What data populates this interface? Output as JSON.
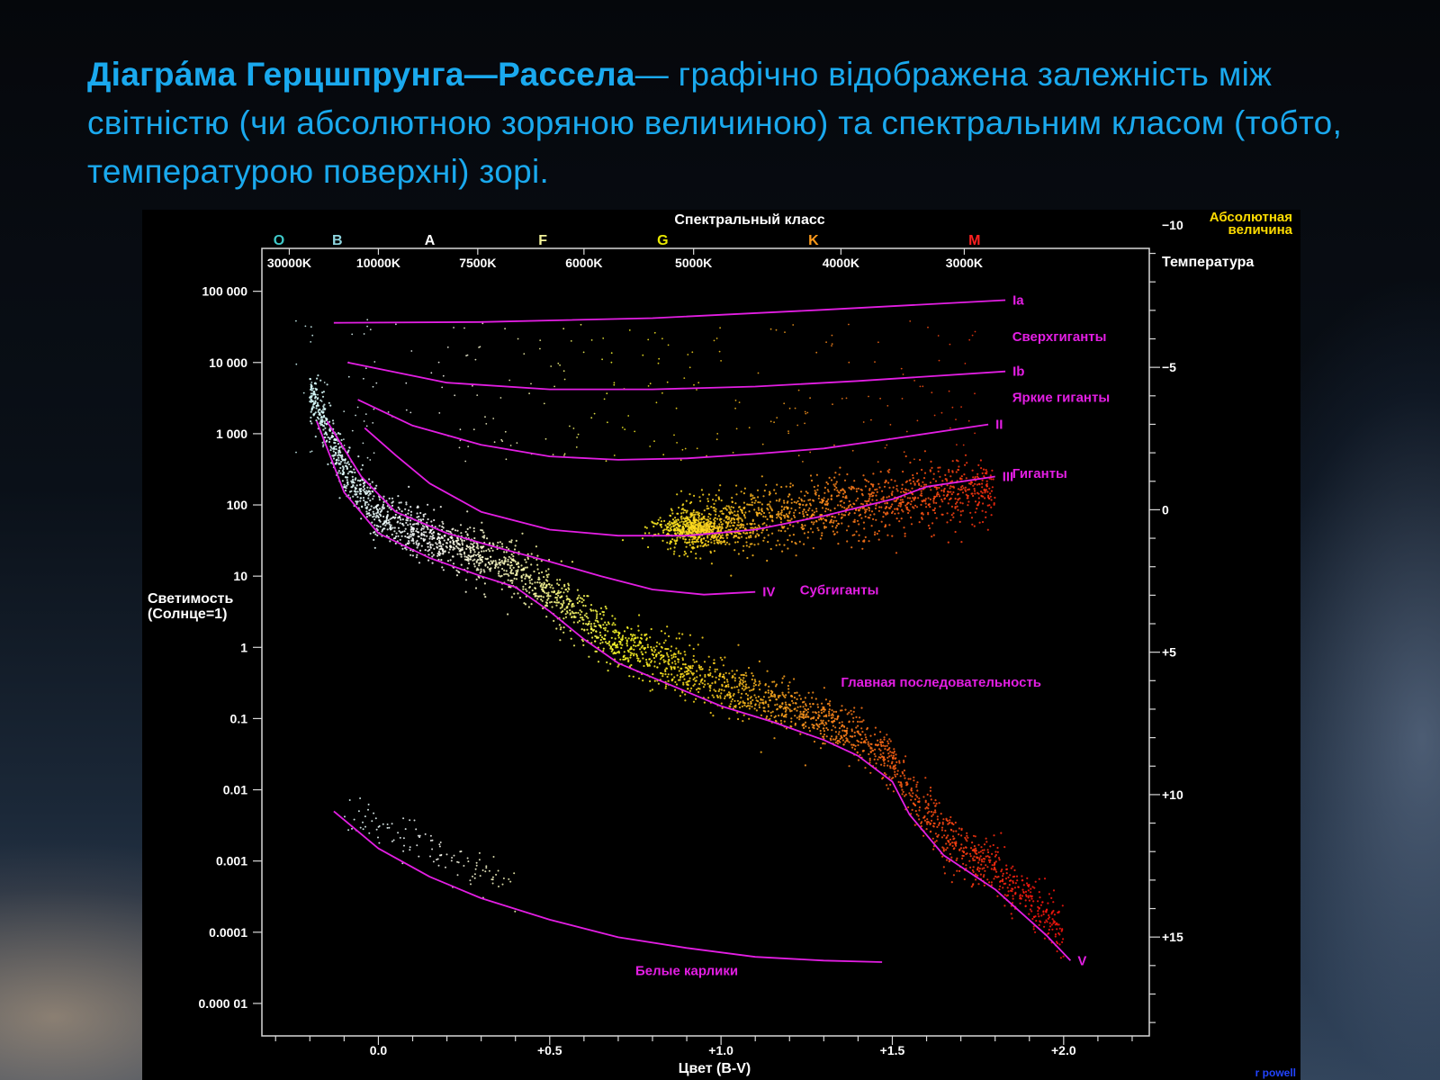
{
  "slide": {
    "title_bold": "Діагра́ма Герцшпрунга—Рассела",
    "title_rest": "— графічно відображена залежність між світністю (чи абсолютною зоряною величиною) та спектральним класом (тобто, температурою поверхні) зорі."
  },
  "chart_data": {
    "type": "scatter",
    "title": "Спектральный класс",
    "xlabel": "Цвет (B-V)",
    "ylabel": "Светимость (Солнце=1)",
    "y2label": "Абсолютная величина",
    "temperature_label": "Температура",
    "credit": "r powell",
    "x_scale": "linear",
    "y_scale": "log",
    "xlim": [
      -0.34,
      2.25
    ],
    "ylim": [
      3.5e-06,
      400000
    ],
    "x_ticks": [
      0.0,
      0.5,
      1.0,
      1.5,
      2.0
    ],
    "x_tick_labels": [
      "0.0",
      "+0.5",
      "+1.0",
      "+1.5",
      "+2.0"
    ],
    "y_ticks": [
      100000,
      10000,
      1000,
      100,
      10,
      1,
      0.1,
      0.01,
      0.001,
      0.0001,
      1e-05
    ],
    "y_tick_labels": [
      "100 000",
      "10 000",
      "1 000",
      "100",
      "10",
      "1",
      "0.1",
      "0.01",
      "0.001",
      "0.0001",
      "0.000 01"
    ],
    "abs_mag_ticks": [
      -10,
      -5,
      0,
      5,
      10,
      15
    ],
    "abs_mag_tick_labels": [
      "−10",
      "−5",
      "0",
      "+5",
      "+10",
      "+15"
    ],
    "spectral_classes": [
      {
        "label": "O",
        "x": -0.29,
        "color": "#3fc9c9"
      },
      {
        "label": "B",
        "x": -0.12,
        "color": "#8fd6e0"
      },
      {
        "label": "A",
        "x": 0.15,
        "color": "#ffffff"
      },
      {
        "label": "F",
        "x": 0.48,
        "color": "#f3f39a"
      },
      {
        "label": "G",
        "x": 0.83,
        "color": "#e8e800"
      },
      {
        "label": "K",
        "x": 1.27,
        "color": "#ff9a1a"
      },
      {
        "label": "M",
        "x": 1.74,
        "color": "#ff2020"
      }
    ],
    "temperatures": [
      {
        "label": "30000K",
        "x": -0.26
      },
      {
        "label": "10000K",
        "x": 0.0
      },
      {
        "label": "7500K",
        "x": 0.29
      },
      {
        "label": "6000K",
        "x": 0.6
      },
      {
        "label": "5000K",
        "x": 0.92
      },
      {
        "label": "4000K",
        "x": 1.35
      },
      {
        "label": "3000K",
        "x": 1.71
      }
    ],
    "grid": false,
    "series": [
      {
        "name": "Ia",
        "label": "Ia",
        "color": "#e31ee3",
        "x": [
          -0.13,
          0.3,
          0.8,
          1.3,
          1.83
        ],
        "y": [
          36000,
          37000,
          42000,
          55000,
          75000
        ]
      },
      {
        "name": "Ib",
        "label": "Ib",
        "color": "#e31ee3",
        "x": [
          -0.09,
          0.2,
          0.5,
          0.8,
          1.1,
          1.4,
          1.83
        ],
        "y": [
          10000,
          5200,
          4200,
          4200,
          4600,
          5500,
          7500
        ]
      },
      {
        "name": "II",
        "label": "II",
        "color": "#e31ee3",
        "x": [
          -0.06,
          0.1,
          0.3,
          0.5,
          0.7,
          0.9,
          1.1,
          1.3,
          1.5,
          1.78
        ],
        "y": [
          3000,
          1300,
          700,
          480,
          430,
          450,
          520,
          620,
          850,
          1350
        ]
      },
      {
        "name": "III",
        "label": "III",
        "color": "#e31ee3",
        "x": [
          -0.04,
          0.05,
          0.15,
          0.3,
          0.5,
          0.7,
          0.9,
          1.1,
          1.3,
          1.5,
          1.6,
          1.8
        ],
        "y": [
          1200,
          500,
          200,
          80,
          45,
          37,
          37,
          45,
          70,
          120,
          180,
          250
        ]
      },
      {
        "name": "IV",
        "label": "IV",
        "color": "#e31ee3",
        "x": [
          -0.15,
          -0.05,
          0.05,
          0.2,
          0.35,
          0.5,
          0.65,
          0.8,
          0.95,
          1.1
        ],
        "y": [
          1500,
          250,
          80,
          40,
          25,
          16,
          10,
          6.5,
          5.5,
          6
        ]
      },
      {
        "name": "V",
        "label": "V",
        "color": "#e31ee3",
        "x": [
          -0.18,
          -0.1,
          0.0,
          0.15,
          0.3,
          0.4,
          0.5,
          0.6,
          0.7,
          0.85,
          1.0,
          1.15,
          1.3,
          1.4,
          1.5,
          1.55,
          1.65,
          1.8,
          1.95,
          2.02
        ],
        "y": [
          1500,
          150,
          40,
          18,
          10,
          7,
          3.2,
          1.3,
          0.6,
          0.3,
          0.15,
          0.09,
          0.05,
          0.03,
          0.013,
          0.0045,
          0.0012,
          0.0004,
          9e-05,
          4e-05
        ]
      },
      {
        "name": "Белые карлики",
        "label": "",
        "color": "#e31ee3",
        "x": [
          -0.13,
          0.0,
          0.15,
          0.3,
          0.5,
          0.7,
          0.9,
          1.1,
          1.3,
          1.47
        ],
        "y": [
          0.005,
          0.0015,
          0.0006,
          0.0003,
          0.00015,
          8.5e-05,
          6e-05,
          4.5e-05,
          4e-05,
          3.8e-05
        ]
      }
    ],
    "annotations": [
      {
        "text": "Сверхгиганты",
        "x": 1.85,
        "y": 20000
      },
      {
        "text": "Яркие гиганты",
        "x": 1.85,
        "y": 2800
      },
      {
        "text": "Гиганты",
        "x": 1.85,
        "y": 240
      },
      {
        "text": "Субгиганты",
        "x": 1.23,
        "y": 5.5
      },
      {
        "text": "Главная последовательность",
        "x": 1.35,
        "y": 0.28
      },
      {
        "text": "Белые карлики",
        "x": 0.75,
        "y": 2.5e-05
      }
    ]
  }
}
